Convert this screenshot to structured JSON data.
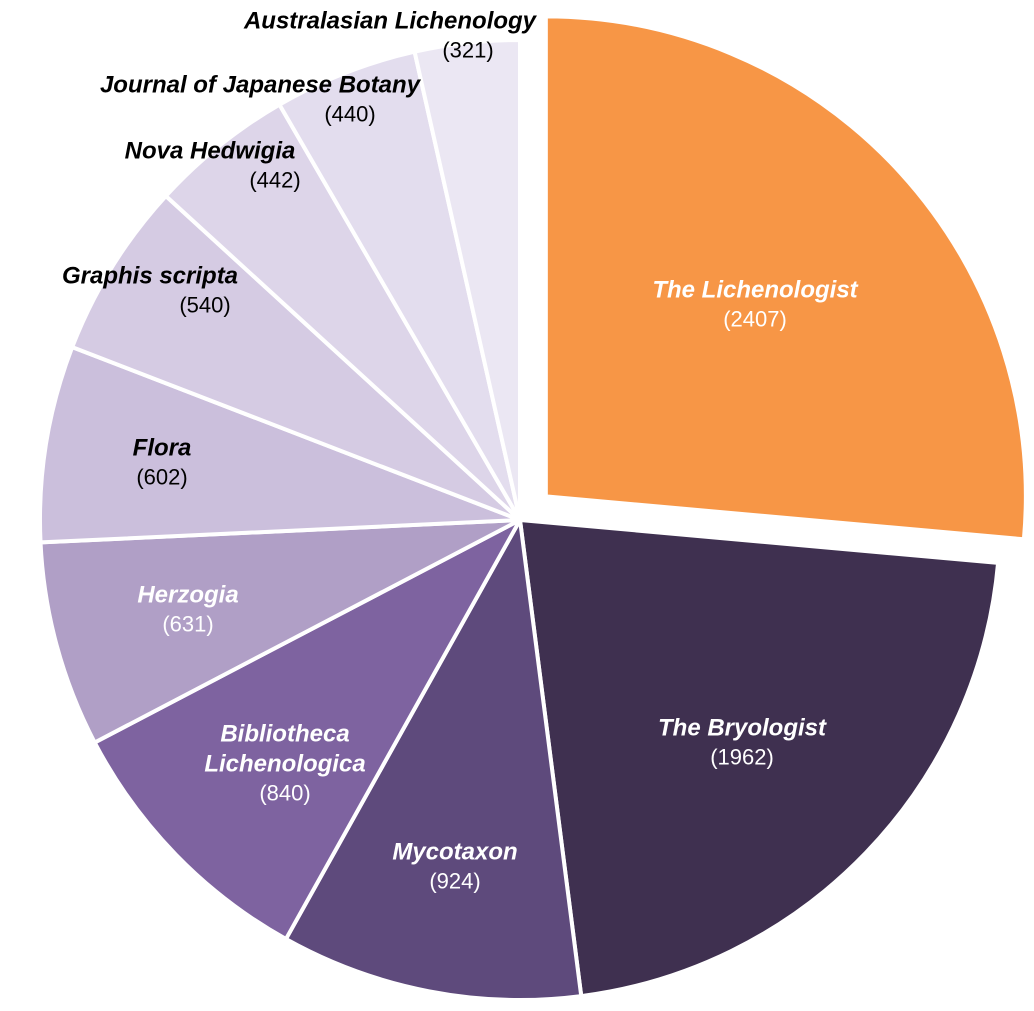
{
  "chart_data": {
    "type": "pie",
    "categories": [
      "The Lichenologist",
      "The Bryologist",
      "Mycotaxon",
      "Bibliotheca Lichenologica",
      "Herzogia",
      "Flora",
      "Graphis scripta",
      "Nova Hedwigia",
      "Journal of Japanese Botany",
      "Australasian Lichenology"
    ],
    "values": [
      2407,
      1962,
      924,
      840,
      631,
      602,
      540,
      442,
      440,
      321
    ],
    "value_labels": [
      "(2407)",
      "(1962)",
      "(924)",
      "(840)",
      "(631)",
      "(602)",
      "(540)",
      "(442)",
      "(440)",
      "(321)"
    ],
    "colors": [
      "#f79646",
      "#3f3050",
      "#5e4a7c",
      "#7e63a0",
      "#b09fc6",
      "#cbbfdc",
      "#d5cbe3",
      "#ddd5e9",
      "#e3ddee",
      "#ebe7f3"
    ]
  }
}
